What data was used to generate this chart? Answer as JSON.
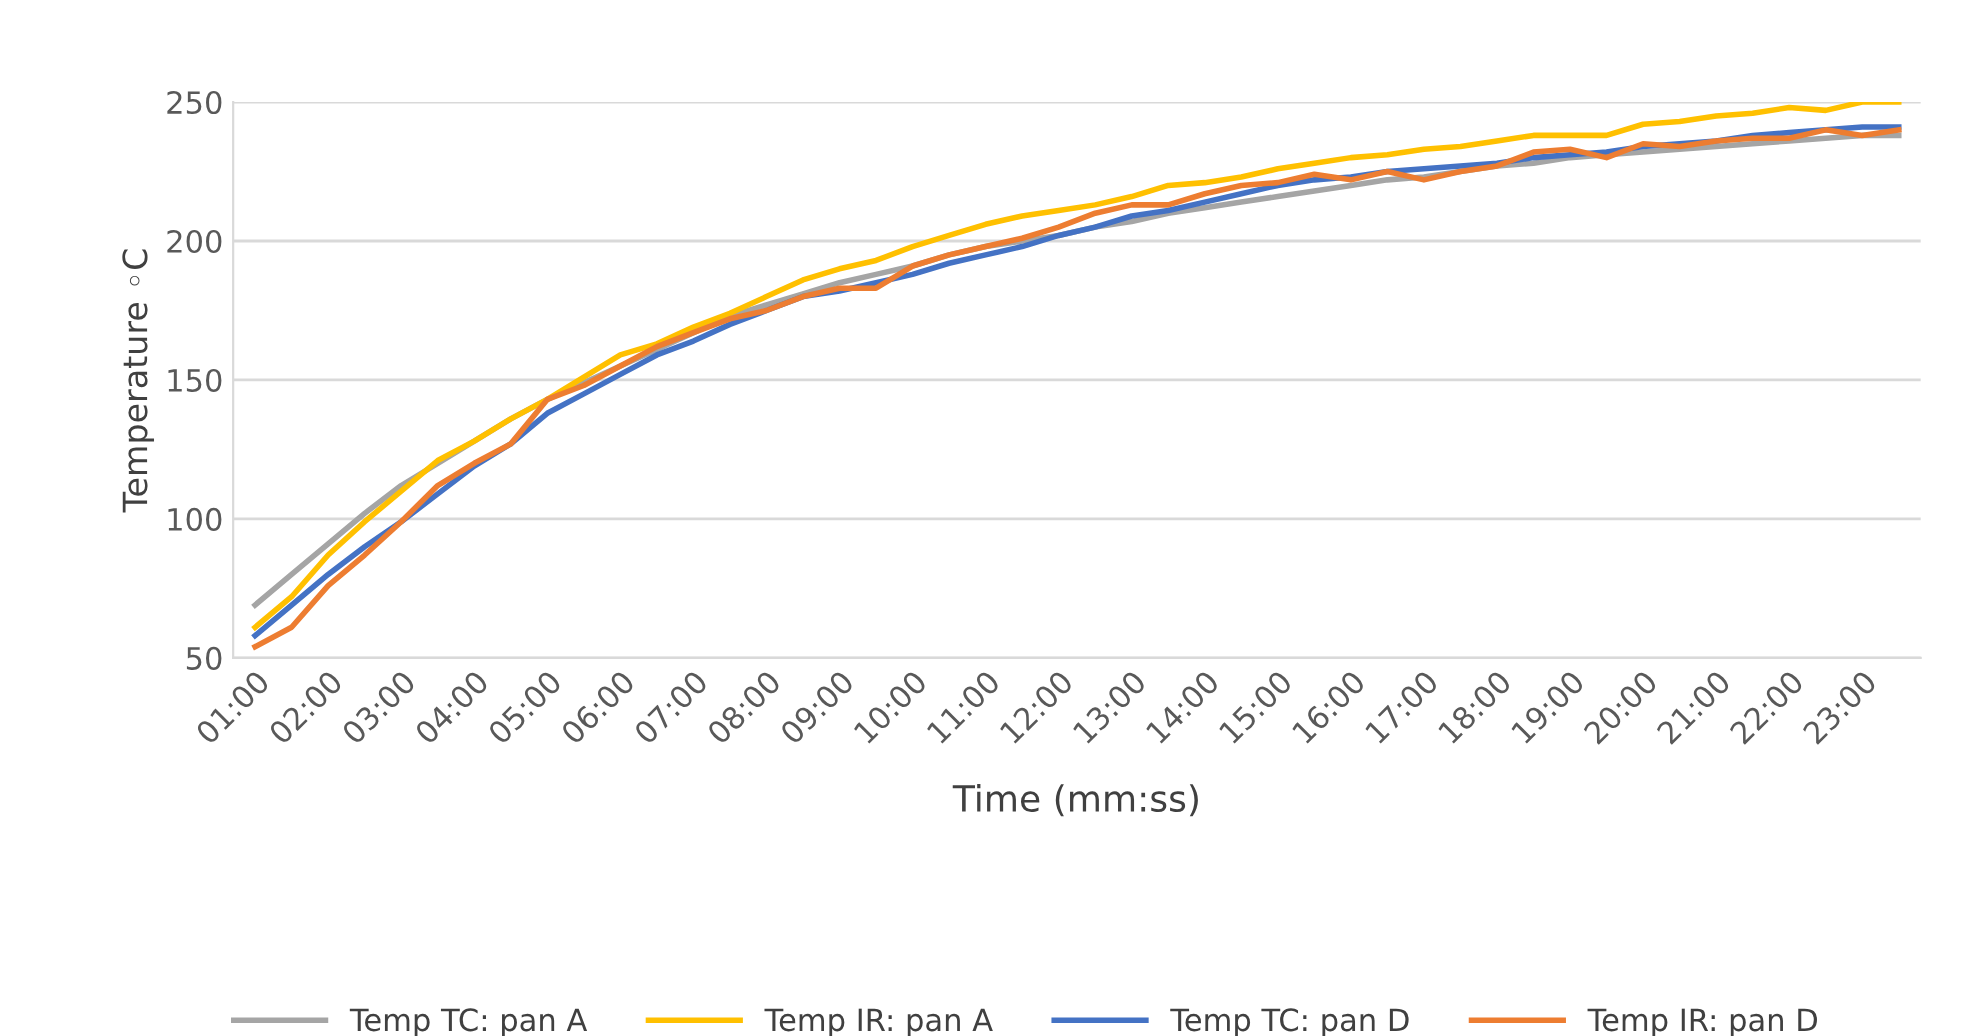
{
  "chart_data": {
    "type": "line",
    "xlabel": "Time (mm:ss)",
    "ylabel": "Temperature ◦C",
    "categories": [
      "01:00",
      null,
      "02:00",
      null,
      "03:00",
      null,
      "04:00",
      null,
      "05:00",
      null,
      "06:00",
      null,
      "07:00",
      null,
      "08:00",
      null,
      "09:00",
      null,
      "10:00",
      null,
      "11:00",
      null,
      "12:00",
      null,
      "13:00",
      null,
      "14:00",
      null,
      "15:00",
      null,
      "16:00",
      null,
      "17:00",
      null,
      "18:00",
      null,
      "19:00",
      null,
      "20:00",
      null,
      "21:00",
      null,
      "22:00",
      null,
      "23:00",
      null
    ],
    "series": [
      {
        "name": "Temp TC: pan A",
        "color": "#a5a5a5",
        "values": [
          69,
          80,
          91,
          102,
          112,
          120,
          128,
          136,
          143,
          149,
          155,
          161,
          167,
          173,
          177,
          181,
          185,
          188,
          191,
          195,
          198,
          200,
          202,
          205,
          207,
          210,
          212,
          214,
          216,
          218,
          220,
          222,
          223,
          225,
          227,
          228,
          230,
          231,
          232,
          233,
          234,
          235,
          236,
          237,
          238,
          238
        ]
      },
      {
        "name": "Temp IR: pan A",
        "color": "#ffc000",
        "values": [
          61,
          72,
          87,
          99,
          110,
          121,
          128,
          136,
          143,
          151,
          159,
          163,
          169,
          174,
          180,
          186,
          190,
          193,
          198,
          202,
          206,
          209,
          211,
          213,
          216,
          220,
          221,
          223,
          226,
          228,
          230,
          231,
          233,
          234,
          236,
          238,
          238,
          238,
          242,
          243,
          245,
          246,
          248,
          247,
          250,
          250
        ]
      },
      {
        "name": "Temp TC: pan D",
        "color": "#4472c4",
        "values": [
          58,
          69,
          80,
          90,
          99,
          109,
          119,
          127,
          138,
          145,
          152,
          159,
          164,
          170,
          175,
          180,
          182,
          185,
          188,
          192,
          195,
          198,
          202,
          205,
          209,
          211,
          214,
          217,
          220,
          222,
          223,
          225,
          226,
          227,
          228,
          230,
          231,
          232,
          234,
          235,
          236,
          238,
          239,
          240,
          241,
          241
        ]
      },
      {
        "name": "Temp IR: pan D",
        "color": "#ed7d31",
        "values": [
          54,
          61,
          76,
          87,
          99,
          112,
          120,
          127,
          143,
          148,
          155,
          162,
          167,
          172,
          175,
          180,
          183,
          183,
          191,
          195,
          198,
          201,
          205,
          210,
          213,
          213,
          217,
          220,
          221,
          224,
          222,
          225,
          222,
          225,
          227,
          232,
          233,
          230,
          235,
          234,
          236,
          237,
          237,
          240,
          238,
          240
        ]
      }
    ],
    "ylim": [
      50,
      250
    ],
    "yticks": [
      50,
      100,
      150,
      200,
      250
    ],
    "grid": "y",
    "legend": "bottom",
    "marker": "none",
    "line_style": "solid"
  }
}
